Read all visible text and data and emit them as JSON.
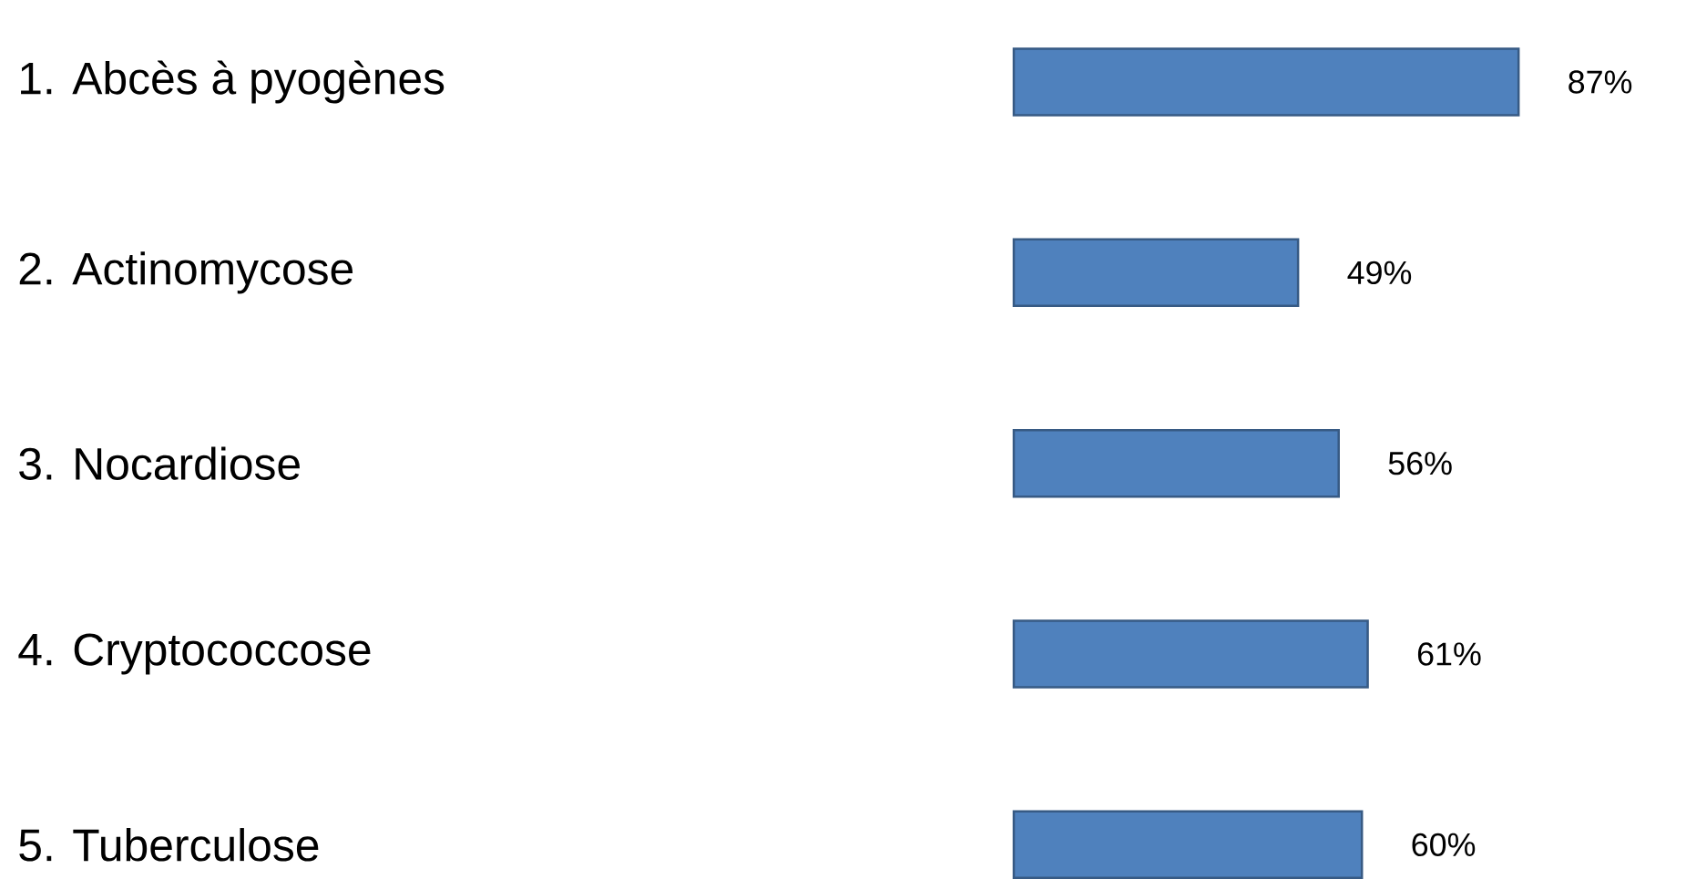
{
  "chart_data": {
    "type": "bar",
    "orientation": "horizontal",
    "categories": [
      "1.   Abcès à pyogènes",
      "2.   Actinomycose",
      "3.   Nocardiose",
      "4.   Cryptococcose",
      "5.   Tuberculose"
    ],
    "values": [
      87,
      49,
      56,
      61,
      60
    ],
    "value_labels": [
      "87%",
      "49%",
      "56%",
      "61%",
      "60%"
    ],
    "color": "#4f81bd"
  }
}
